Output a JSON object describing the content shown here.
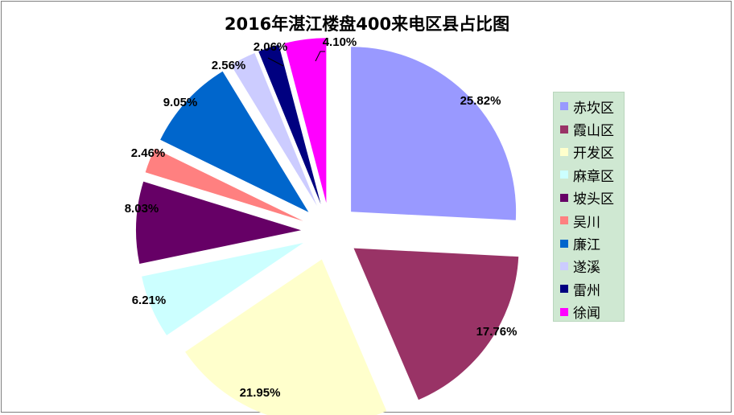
{
  "chart_data": {
    "type": "pie",
    "title": "2016年湛江楼盘400来电区县占比图",
    "slices": [
      {
        "name": "赤坎区",
        "value": 25.82,
        "label": "25.82%",
        "color": "#9999ff"
      },
      {
        "name": "霞山区",
        "value": 17.76,
        "label": "17.76%",
        "color": "#993366"
      },
      {
        "name": "开发区",
        "value": 21.95,
        "label": "21.95%",
        "color": "#ffffcc"
      },
      {
        "name": "麻章区",
        "value": 6.21,
        "label": "6.21%",
        "color": "#ccffff"
      },
      {
        "name": "坡头区",
        "value": 8.03,
        "label": "8.03%",
        "color": "#660066"
      },
      {
        "name": "吴川",
        "value": 2.46,
        "label": "2.46%",
        "color": "#ff8080"
      },
      {
        "name": "廉江",
        "value": 9.05,
        "label": "9.05%",
        "color": "#0066cc"
      },
      {
        "name": "遂溪",
        "value": 2.56,
        "label": "2.56%",
        "color": "#ccccff"
      },
      {
        "name": "雷州",
        "value": 2.06,
        "label": "2.06%",
        "color": "#000080"
      },
      {
        "name": "徐闻",
        "value": 4.1,
        "label": "4.10%",
        "color": "#ff00ff"
      }
    ],
    "legend_position": "right",
    "exploded": true
  }
}
